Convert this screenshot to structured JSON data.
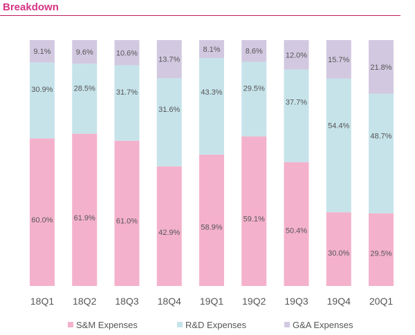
{
  "header": {
    "title": "Breakdown"
  },
  "chart_data": {
    "type": "bar",
    "stacked": true,
    "categories": [
      "18Q1",
      "18Q2",
      "18Q3",
      "18Q4",
      "19Q1",
      "19Q2",
      "19Q3",
      "19Q4",
      "20Q1"
    ],
    "series": [
      {
        "name": "S&M Expenses",
        "color": "#f4b1cb",
        "values": [
          60.0,
          61.9,
          61.0,
          42.9,
          58.9,
          59.1,
          50.4,
          30.0,
          29.5
        ],
        "labels": [
          "60.0%",
          "61.9%",
          "61.0%",
          "42.9%",
          "58.9%",
          "59.1%",
          "50.4%",
          "30.0%",
          "29.5%"
        ]
      },
      {
        "name": "R&D Expenses",
        "color": "#c6e3ea",
        "values": [
          30.9,
          28.5,
          31.7,
          31.6,
          43.3,
          29.5,
          37.7,
          54.4,
          48.7
        ],
        "labels": [
          "30.9%",
          "28.5%",
          "31.7%",
          "31.6%",
          "43.3%",
          "29.5%",
          "37.7%",
          "54.4%",
          "48.7%"
        ]
      },
      {
        "name": "G&A Expenses",
        "color": "#d2c9e1",
        "values": [
          9.1,
          9.6,
          10.6,
          13.7,
          8.1,
          8.6,
          12.0,
          15.7,
          21.8
        ],
        "labels": [
          "9.1%",
          "9.6%",
          "10.6%",
          "13.7%",
          "8.1%",
          "8.6%",
          "12.0%",
          "15.7%",
          "21.8%"
        ]
      }
    ],
    "legend_position": "bottom",
    "grid": false
  }
}
